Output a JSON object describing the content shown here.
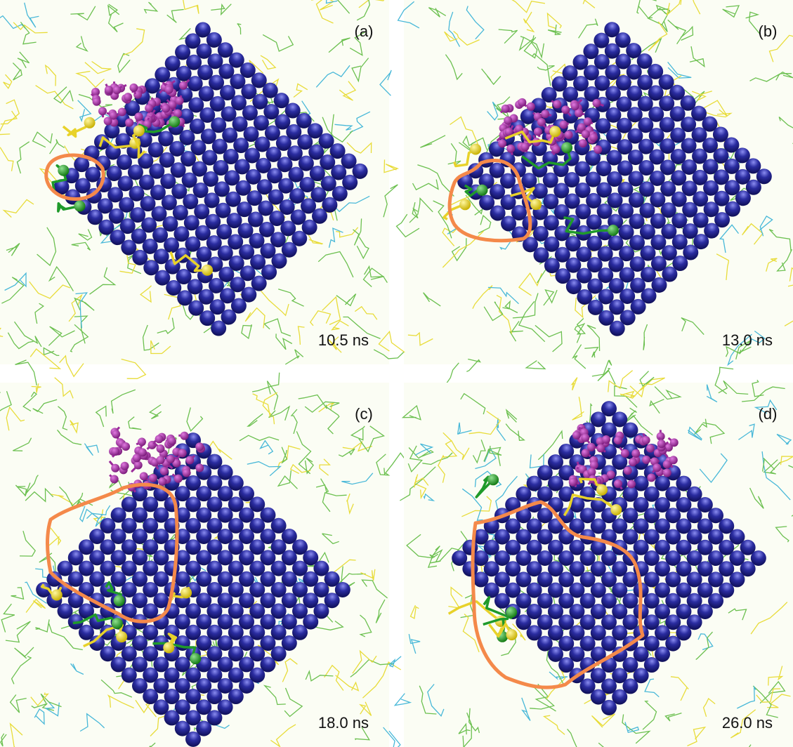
{
  "panels": [
    {
      "label": "(a)",
      "time": "10.5 ns"
    },
    {
      "label": "(b)",
      "time": "13.0 ns"
    },
    {
      "label": "(c)",
      "time": "18.0 ns"
    },
    {
      "label": "(d)",
      "time": "26.0 ns"
    }
  ]
}
